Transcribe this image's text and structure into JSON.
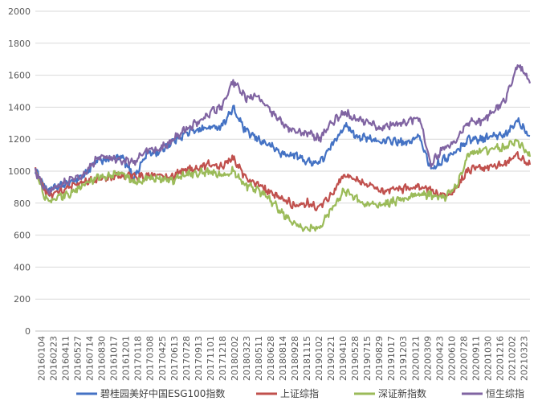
{
  "chart_data": {
    "type": "line",
    "title": "",
    "xlabel": "",
    "ylabel": "",
    "ylim": [
      0,
      2000
    ],
    "yticks": [
      0,
      200,
      400,
      600,
      800,
      1000,
      1200,
      1400,
      1600,
      1800,
      2000
    ],
    "grid": "horizontal",
    "legend": "bottom",
    "x_tick_labels": [
      "20160104",
      "20160223",
      "20160411",
      "20160527",
      "20160714",
      "20160830",
      "20161017",
      "20161201",
      "20170118",
      "20170308",
      "20170425",
      "20170613",
      "20170728",
      "20170913",
      "20171101",
      "20171218",
      "20180202",
      "20180323",
      "20180511",
      "20180628",
      "20180814",
      "20180928",
      "20181115",
      "20190102",
      "20190221",
      "20190410",
      "20190528",
      "20190715",
      "20190829",
      "20191017",
      "20191203",
      "20200121",
      "20200309",
      "20200423",
      "20200610",
      "20200728",
      "20200911",
      "20201030",
      "20201216",
      "20210202",
      "20210323"
    ],
    "series": [
      {
        "name": "碧桂园美好中国ESG100指数",
        "color": "#4472C4",
        "values": [
          1000,
          880,
          905,
          935,
          980,
          1065,
          1075,
          1085,
          960,
          1110,
          1120,
          1180,
          1230,
          1260,
          1270,
          1280,
          1390,
          1250,
          1200,
          1160,
          1105,
          1100,
          1060,
          1055,
          1160,
          1290,
          1220,
          1200,
          1185,
          1190,
          1170,
          1220,
          1020,
          1070,
          1120,
          1200,
          1200,
          1220,
          1220,
          1320,
          1220
        ]
      },
      {
        "name": "上证综指",
        "color": "#C0504D",
        "values": [
          1000,
          850,
          870,
          900,
          940,
          945,
          955,
          970,
          965,
          970,
          970,
          960,
          1010,
          1020,
          1040,
          1030,
          1080,
          960,
          920,
          860,
          820,
          790,
          800,
          770,
          860,
          980,
          940,
          915,
          875,
          890,
          890,
          900,
          880,
          850,
          880,
          1010,
          1020,
          1030,
          1050,
          1100,
          1040
        ]
      },
      {
        "name": "深证新指数",
        "color": "#9BBB59",
        "values": [
          1000,
          800,
          840,
          860,
          920,
          960,
          975,
          990,
          930,
          950,
          960,
          940,
          980,
          990,
          990,
          980,
          1000,
          910,
          880,
          820,
          740,
          660,
          650,
          640,
          770,
          880,
          830,
          790,
          790,
          810,
          830,
          860,
          850,
          830,
          900,
          1100,
          1120,
          1140,
          1150,
          1190,
          1090
        ]
      },
      {
        "name": "恒生综指",
        "color": "#8064A2",
        "values": [
          1000,
          870,
          920,
          950,
          980,
          1080,
          1085,
          1060,
          1060,
          1130,
          1140,
          1180,
          1260,
          1300,
          1360,
          1400,
          1560,
          1460,
          1470,
          1370,
          1300,
          1240,
          1240,
          1200,
          1300,
          1370,
          1320,
          1300,
          1270,
          1290,
          1300,
          1340,
          1050,
          1140,
          1180,
          1310,
          1310,
          1370,
          1440,
          1670,
          1550
        ]
      }
    ]
  }
}
